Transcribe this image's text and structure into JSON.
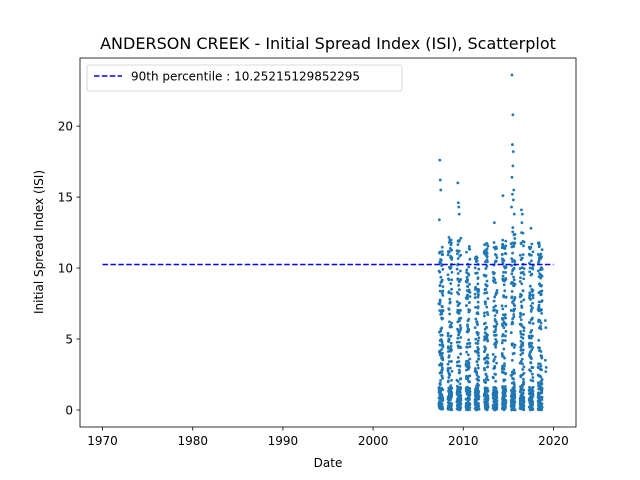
{
  "chart_data": {
    "type": "scatter",
    "title": "ANDERSON CREEK - Initial Spread Index (ISI), Scatterplot",
    "xlabel": "Date",
    "ylabel": "Initial Spread Index (ISI)",
    "xlim": [
      1967.5,
      2022.5
    ],
    "ylim": [
      -1.2,
      24.8
    ],
    "xticks": [
      1970,
      1980,
      1990,
      2000,
      2010,
      2020
    ],
    "xtick_labels": [
      "1970",
      "1980",
      "1990",
      "2000",
      "2010",
      "2020"
    ],
    "yticks": [
      0,
      5,
      10,
      15,
      20
    ],
    "ytick_labels": [
      "0",
      "5",
      "10",
      "15",
      "20"
    ],
    "grid": false,
    "legend": {
      "placement": "upper-left",
      "entries": [
        {
          "label": "90th percentile : 10.25215129852295",
          "style": "dashed-line",
          "color": "#0000ff"
        }
      ]
    },
    "reference_line": {
      "value": 10.25215129852295,
      "x_range": [
        1970,
        2020
      ],
      "color": "#0000ff",
      "style": "dashed"
    },
    "scatter_series": {
      "color": "#1f77b4",
      "seasons": [
        {
          "start": 2007.3,
          "end": 2007.75,
          "ymax": 11.5
        },
        {
          "start": 2008.3,
          "end": 2008.75,
          "ymax": 12.5
        },
        {
          "start": 2009.3,
          "end": 2009.75,
          "ymax": 12.5
        },
        {
          "start": 2010.3,
          "end": 2010.75,
          "ymax": 11.6
        },
        {
          "start": 2011.3,
          "end": 2011.75,
          "ymax": 10.8
        },
        {
          "start": 2012.3,
          "end": 2012.75,
          "ymax": 11.8
        },
        {
          "start": 2013.3,
          "end": 2013.75,
          "ymax": 11.8
        },
        {
          "start": 2014.3,
          "end": 2014.75,
          "ymax": 12.0
        },
        {
          "start": 2015.3,
          "end": 2015.75,
          "ymax": 13.0
        },
        {
          "start": 2016.3,
          "end": 2016.75,
          "ymax": 12.5
        },
        {
          "start": 2017.3,
          "end": 2017.75,
          "ymax": 12.0
        },
        {
          "start": 2018.3,
          "end": 2018.75,
          "ymax": 11.8
        }
      ],
      "outliers": [
        {
          "x": 2007.4,
          "y": 17.6
        },
        {
          "x": 2007.45,
          "y": 16.2
        },
        {
          "x": 2007.5,
          "y": 15.5
        },
        {
          "x": 2007.35,
          "y": 13.4
        },
        {
          "x": 2009.4,
          "y": 16.0
        },
        {
          "x": 2009.45,
          "y": 14.6
        },
        {
          "x": 2009.5,
          "y": 14.3
        },
        {
          "x": 2009.55,
          "y": 13.8
        },
        {
          "x": 2013.45,
          "y": 13.2
        },
        {
          "x": 2014.4,
          "y": 15.1
        },
        {
          "x": 2015.4,
          "y": 23.6
        },
        {
          "x": 2015.5,
          "y": 20.8
        },
        {
          "x": 2015.45,
          "y": 18.7
        },
        {
          "x": 2015.55,
          "y": 18.2
        },
        {
          "x": 2015.5,
          "y": 17.2
        },
        {
          "x": 2015.4,
          "y": 16.4
        },
        {
          "x": 2015.6,
          "y": 15.5
        },
        {
          "x": 2015.45,
          "y": 15.2
        },
        {
          "x": 2015.55,
          "y": 14.8
        },
        {
          "x": 2015.35,
          "y": 14.3
        },
        {
          "x": 2015.65,
          "y": 13.8
        },
        {
          "x": 2016.45,
          "y": 14.1
        },
        {
          "x": 2016.55,
          "y": 13.8
        },
        {
          "x": 2016.5,
          "y": 13.2
        },
        {
          "x": 2017.5,
          "y": 12.8
        },
        {
          "x": 2019.1,
          "y": 6.3
        },
        {
          "x": 2019.15,
          "y": 5.8
        },
        {
          "x": 2019.1,
          "y": 3.5
        },
        {
          "x": 2019.2,
          "y": 3.0
        },
        {
          "x": 2019.15,
          "y": 2.7
        }
      ]
    }
  }
}
